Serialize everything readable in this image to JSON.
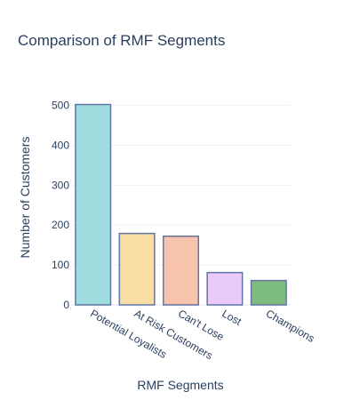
{
  "chart_data": {
    "type": "bar",
    "title": "Comparison of RMF Segments",
    "xlabel": "RMF Segments",
    "ylabel": "Number of Customers",
    "categories": [
      "Potential Loyalists",
      "At Risk Customers",
      "Can't Lose",
      "Lost",
      "Champions"
    ],
    "values": [
      502,
      179,
      172,
      81,
      61
    ],
    "colors": [
      "#9bdce0",
      "#f8dca0",
      "#f8c0a8",
      "#e8c8f8",
      "#78b878"
    ],
    "ylim": [
      0,
      530
    ],
    "yticks": [
      0,
      100,
      200,
      300,
      400,
      500
    ],
    "grid": true,
    "legend": false
  }
}
